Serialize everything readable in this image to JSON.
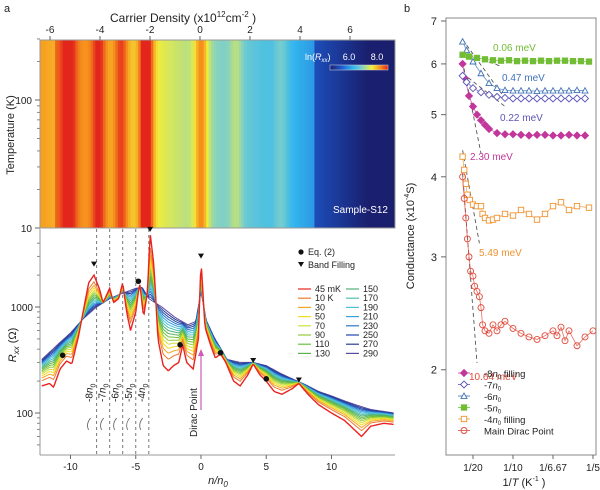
{
  "panel_labels": {
    "a": "a",
    "b": "b"
  },
  "chart_data": [
    {
      "id": "a-top",
      "type": "heatmap",
      "title": "",
      "xlabel": "Carrier Density (x10^12 cm^-2)",
      "xlabel_parts": {
        "main": "Carrier Density (x10",
        "sup1": "12",
        "mid": "cm",
        "sup2": "-2",
        "end": " )"
      },
      "ylabel": "Temperature (K)",
      "xlim": [
        -6.5,
        7.8
      ],
      "ylim": [
        10,
        300
      ],
      "yscale": "log",
      "x_ticks": [
        -6,
        -4,
        -2,
        0,
        2,
        4,
        6
      ],
      "y_ticks": [
        10,
        100
      ],
      "colorbar": {
        "label": "ln(R_xx)",
        "label_main": "ln(",
        "label_var": "R",
        "label_sub": "xx",
        "label_end": ")",
        "ticks": [
          6.0,
          8.0
        ],
        "tick_labels": [
          "6.0",
          "8.0"
        ],
        "colormap": [
          "#1a1f6e",
          "#1e5bd0",
          "#33b7ee",
          "#7fd0c8",
          "#f2ee3a",
          "#f7941d",
          "#e3261c"
        ]
      },
      "annotation": "Sample-S12",
      "ridges_carrier_density": [
        -5.3,
        -4.1,
        -3.2,
        -2.2,
        0.0,
        1.4,
        3.2
      ]
    },
    {
      "id": "a-bottom",
      "type": "line",
      "xlabel": "n/n0",
      "xlabel_parts": {
        "main": "n/n",
        "sub": "0"
      },
      "ylabel": "R_xx (Ω)",
      "ylabel_parts": {
        "var": "R",
        "sub": "xx",
        "unit": " (Ω)"
      },
      "xlim": [
        -12.4,
        14.8
      ],
      "ylim": [
        40,
        5200
      ],
      "yscale": "log",
      "x_ticks": [
        -10,
        -5,
        0,
        5,
        10
      ],
      "y_ticks": [
        100,
        1000
      ],
      "legend": {
        "markers": [
          {
            "symbol": "circle",
            "label": "Eq. (2)"
          },
          {
            "symbol": "triangle-down",
            "label": "Band Filling"
          }
        ],
        "placement": "top-right",
        "series_labels": [
          "45 mK",
          "10 K",
          "30",
          "50",
          "70",
          "90",
          "110",
          "130",
          "150",
          "170",
          "190",
          "210",
          "230",
          "250",
          "270",
          "290"
        ]
      },
      "series_colors": [
        "#e8231f",
        "#ee7a30",
        "#f5a623",
        "#f6dd1e",
        "#cfe03a",
        "#97cc3a",
        "#6cbf3e",
        "#5ab44c",
        "#4fb07a",
        "#4fc0b0",
        "#4cc3dc",
        "#3aa3e0",
        "#2d76c8",
        "#1f46a8",
        "#2a3d9a",
        "#5a4aa0"
      ],
      "vertical_lines": [
        {
          "x": -8,
          "label": "-8n0"
        },
        {
          "x": -7,
          "label": "-7n0"
        },
        {
          "x": -6,
          "label": "-6n0"
        },
        {
          "x": -5,
          "label": "-5n0"
        },
        {
          "x": -4,
          "label": "-4n0"
        }
      ],
      "vline_label_main": [
        "-8",
        "-7",
        "-6",
        "-5",
        "-4"
      ],
      "vline_label_var": "n",
      "vline_label_sub": "0",
      "arrow_annotation": {
        "label": "Dirac Point",
        "x": 0,
        "color": "#d05ab4"
      },
      "eq2_points": [
        [
          -10.6,
          350
        ],
        [
          -4.8,
          1750
        ],
        [
          -1.6,
          440
        ],
        [
          1.5,
          370
        ],
        [
          5.0,
          210
        ]
      ],
      "band_filling_points": [
        [
          -8.2,
          2350
        ],
        [
          -3.9,
          5000
        ],
        [
          0.0,
          2800
        ],
        [
          4.0,
          290
        ],
        [
          7.5,
          190
        ]
      ],
      "curve_45mK": [
        [
          -12.2,
          180
        ],
        [
          -11.6,
          190
        ],
        [
          -11.3,
          175
        ],
        [
          -10.8,
          260
        ],
        [
          -10.3,
          310
        ],
        [
          -9.9,
          290
        ],
        [
          -9.4,
          520
        ],
        [
          -8.9,
          1100
        ],
        [
          -8.6,
          1700
        ],
        [
          -8.2,
          2000
        ],
        [
          -7.8,
          1500
        ],
        [
          -7.5,
          1100
        ],
        [
          -7.0,
          1500
        ],
        [
          -6.7,
          1100
        ],
        [
          -6.3,
          1200
        ],
        [
          -6.0,
          1700
        ],
        [
          -5.7,
          900
        ],
        [
          -5.4,
          600
        ],
        [
          -5.0,
          900
        ],
        [
          -4.7,
          1700
        ],
        [
          -4.4,
          800
        ],
        [
          -4.1,
          1400
        ],
        [
          -3.9,
          5000
        ],
        [
          -3.6,
          2400
        ],
        [
          -3.3,
          500
        ],
        [
          -2.9,
          280
        ],
        [
          -2.5,
          250
        ],
        [
          -2.1,
          280
        ],
        [
          -1.7,
          300
        ],
        [
          -1.4,
          440
        ],
        [
          -1.1,
          300
        ],
        [
          -0.6,
          260
        ],
        [
          -0.2,
          500
        ],
        [
          0.0,
          2800
        ],
        [
          0.3,
          650
        ],
        [
          0.7,
          450
        ],
        [
          1.1,
          330
        ],
        [
          1.5,
          360
        ],
        [
          1.9,
          300
        ],
        [
          2.5,
          200
        ],
        [
          3.0,
          180
        ],
        [
          3.6,
          230
        ],
        [
          4.0,
          290
        ],
        [
          4.5,
          230
        ],
        [
          5.0,
          200
        ],
        [
          5.6,
          160
        ],
        [
          6.2,
          150
        ],
        [
          7.0,
          170
        ],
        [
          7.5,
          190
        ],
        [
          8.2,
          150
        ],
        [
          9.0,
          120
        ],
        [
          10.0,
          100
        ],
        [
          11.0,
          85
        ],
        [
          12.3,
          60
        ],
        [
          13.0,
          75
        ],
        [
          14.0,
          80
        ],
        [
          14.8,
          78
        ]
      ],
      "curve_290K": [
        [
          -12.2,
          320
        ],
        [
          -11,
          440
        ],
        [
          -10,
          570
        ],
        [
          -9,
          780
        ],
        [
          -8,
          1000
        ],
        [
          -7,
          1200
        ],
        [
          -6,
          1350
        ],
        [
          -5,
          1500
        ],
        [
          -4.5,
          1530
        ],
        [
          -4,
          1200
        ],
        [
          -3,
          1000
        ],
        [
          -2,
          800
        ],
        [
          -1,
          680
        ],
        [
          -0.4,
          730
        ],
        [
          0,
          1400
        ],
        [
          0.4,
          750
        ],
        [
          1,
          520
        ],
        [
          2,
          320
        ],
        [
          3,
          300
        ],
        [
          4,
          300
        ],
        [
          5,
          280
        ],
        [
          6,
          240
        ],
        [
          7,
          210
        ],
        [
          8,
          185
        ],
        [
          9,
          160
        ],
        [
          10,
          145
        ],
        [
          11,
          130
        ],
        [
          12,
          118
        ],
        [
          13,
          108
        ],
        [
          14.8,
          100
        ]
      ]
    },
    {
      "id": "b",
      "type": "scatter",
      "xlabel": "1/T (K^-1)",
      "xlabel_parts": {
        "main": "1/",
        "var": "T",
        "unit": " (K",
        "sup": "-1",
        "end": " )"
      },
      "ylabel": "Conductance (x10^-4 S)",
      "ylabel_parts": {
        "main": "Conductance (x10",
        "sup": "-4",
        "end": "S)"
      },
      "xlim": [
        0.033,
        0.204
      ],
      "ylim": [
        1.55,
        7.1
      ],
      "yscale": "log",
      "x_ticks": [
        0.05,
        0.1,
        0.15,
        0.2
      ],
      "x_tick_labels": [
        "1/20",
        "1/10",
        "1/6.67",
        "1/5"
      ],
      "y_ticks": [
        2,
        3,
        4,
        5,
        6,
        7
      ],
      "legend": {
        "placement": "bottom-left"
      },
      "series": [
        {
          "name": "-8n0 filling",
          "label_main": "-8",
          "label_suffix": " filling",
          "marker": "diamond-filled",
          "color": "#c2379b",
          "gap_label": "2.30 meV",
          "gap_meV": 2.3,
          "points": [
            [
              0.037,
              6.0
            ],
            [
              0.04,
              5.7
            ],
            [
              0.045,
              5.35
            ],
            [
              0.05,
              5.15
            ],
            [
              0.055,
              5.0
            ],
            [
              0.06,
              4.9
            ],
            [
              0.065,
              4.82
            ],
            [
              0.07,
              4.75
            ],
            [
              0.08,
              4.68
            ],
            [
              0.09,
              4.66
            ],
            [
              0.1,
              4.66
            ],
            [
              0.11,
              4.65
            ],
            [
              0.12,
              4.64
            ],
            [
              0.13,
              4.65
            ],
            [
              0.14,
              4.65
            ],
            [
              0.15,
              4.64
            ],
            [
              0.16,
              4.64
            ],
            [
              0.17,
              4.65
            ],
            [
              0.18,
              4.64
            ],
            [
              0.19,
              4.64
            ]
          ]
        },
        {
          "name": "-7n0",
          "label_main": "-7",
          "label_suffix": "",
          "marker": "diamond-open",
          "color": "#5a55b5",
          "gap_label": "0.22 meV",
          "gap_meV": 0.22,
          "points": [
            [
              0.037,
              5.75
            ],
            [
              0.042,
              5.62
            ],
            [
              0.05,
              5.5
            ],
            [
              0.06,
              5.42
            ],
            [
              0.07,
              5.37
            ],
            [
              0.08,
              5.33
            ],
            [
              0.09,
              5.31
            ],
            [
              0.1,
              5.3
            ],
            [
              0.11,
              5.3
            ],
            [
              0.12,
              5.3
            ],
            [
              0.13,
              5.3
            ],
            [
              0.14,
              5.3
            ],
            [
              0.15,
              5.3
            ],
            [
              0.16,
              5.3
            ],
            [
              0.17,
              5.3
            ],
            [
              0.18,
              5.3
            ],
            [
              0.19,
              5.3
            ]
          ]
        },
        {
          "name": "-6n0",
          "label_main": "-6",
          "label_suffix": "",
          "marker": "triangle-open",
          "color": "#3f72b8",
          "gap_label": "0.47 meV",
          "gap_meV": 0.47,
          "points": [
            [
              0.037,
              6.5
            ],
            [
              0.042,
              6.3
            ],
            [
              0.05,
              6.05
            ],
            [
              0.06,
              5.8
            ],
            [
              0.07,
              5.6
            ],
            [
              0.08,
              5.5
            ],
            [
              0.09,
              5.46
            ],
            [
              0.1,
              5.45
            ],
            [
              0.11,
              5.45
            ],
            [
              0.12,
              5.45
            ],
            [
              0.13,
              5.44
            ],
            [
              0.14,
              5.45
            ],
            [
              0.15,
              5.45
            ],
            [
              0.16,
              5.45
            ],
            [
              0.17,
              5.45
            ],
            [
              0.18,
              5.46
            ],
            [
              0.19,
              5.45
            ]
          ]
        },
        {
          "name": "-5n0",
          "label_main": "-5",
          "label_suffix": "",
          "marker": "square-filled",
          "color": "#72bd35",
          "gap_label": "0.06 meV",
          "gap_meV": 0.06,
          "points": [
            [
              0.037,
              6.2
            ],
            [
              0.045,
              6.16
            ],
            [
              0.055,
              6.13
            ],
            [
              0.065,
              6.1
            ],
            [
              0.075,
              6.08
            ],
            [
              0.085,
              6.07
            ],
            [
              0.095,
              6.08
            ],
            [
              0.105,
              6.06
            ],
            [
              0.115,
              6.07
            ],
            [
              0.125,
              6.06
            ],
            [
              0.135,
              6.07
            ],
            [
              0.145,
              6.06
            ],
            [
              0.155,
              6.07
            ],
            [
              0.165,
              6.07
            ],
            [
              0.175,
              6.06
            ],
            [
              0.185,
              6.06
            ],
            [
              0.195,
              6.05
            ]
          ]
        },
        {
          "name": "-4n0 filling",
          "label_main": "-4",
          "label_suffix": " filling",
          "marker": "square-open",
          "color": "#f0922e",
          "gap_label": "5.49 meV",
          "gap_meV": 5.49,
          "points": [
            [
              0.037,
              4.3
            ],
            [
              0.039,
              4.1
            ],
            [
              0.041,
              3.9
            ],
            [
              0.043,
              3.75
            ],
            [
              0.046,
              3.68
            ],
            [
              0.05,
              3.62
            ],
            [
              0.055,
              3.6
            ],
            [
              0.06,
              3.6
            ],
            [
              0.062,
              3.5
            ],
            [
              0.065,
              3.45
            ],
            [
              0.07,
              3.42
            ],
            [
              0.075,
              3.43
            ],
            [
              0.08,
              3.45
            ],
            [
              0.09,
              3.5
            ],
            [
              0.1,
              3.48
            ],
            [
              0.11,
              3.55
            ],
            [
              0.12,
              3.5
            ],
            [
              0.13,
              3.43
            ],
            [
              0.14,
              3.5
            ],
            [
              0.15,
              3.6
            ],
            [
              0.16,
              3.65
            ],
            [
              0.17,
              3.55
            ],
            [
              0.18,
              3.6
            ],
            [
              0.195,
              3.58
            ]
          ]
        },
        {
          "name": "Main Dirac Point",
          "label_main": "Main Dirac Point",
          "label_suffix": "",
          "marker": "circle-open",
          "color": "#e24a3b",
          "gap_label": "10.64 meV",
          "gap_meV": 10.64,
          "points": [
            [
              0.037,
              4.0
            ],
            [
              0.039,
              3.7
            ],
            [
              0.041,
              3.45
            ],
            [
              0.043,
              3.2
            ],
            [
              0.045,
              3.0
            ],
            [
              0.047,
              2.85
            ],
            [
              0.05,
              2.8
            ],
            [
              0.052,
              2.7
            ],
            [
              0.055,
              2.65
            ],
            [
              0.058,
              2.6
            ],
            [
              0.06,
              2.5
            ],
            [
              0.062,
              2.35
            ],
            [
              0.065,
              2.3
            ],
            [
              0.07,
              2.28
            ],
            [
              0.075,
              2.35
            ],
            [
              0.08,
              2.3
            ],
            [
              0.085,
              2.35
            ],
            [
              0.09,
              2.38
            ],
            [
              0.1,
              2.32
            ],
            [
              0.11,
              2.28
            ],
            [
              0.12,
              2.25
            ],
            [
              0.13,
              2.23
            ],
            [
              0.14,
              2.26
            ],
            [
              0.15,
              2.3
            ],
            [
              0.155,
              2.26
            ],
            [
              0.16,
              2.33
            ],
            [
              0.165,
              2.22
            ],
            [
              0.17,
              2.3
            ],
            [
              0.18,
              2.18
            ],
            [
              0.19,
              2.25
            ],
            [
              0.2,
              2.3
            ]
          ]
        }
      ]
    }
  ]
}
